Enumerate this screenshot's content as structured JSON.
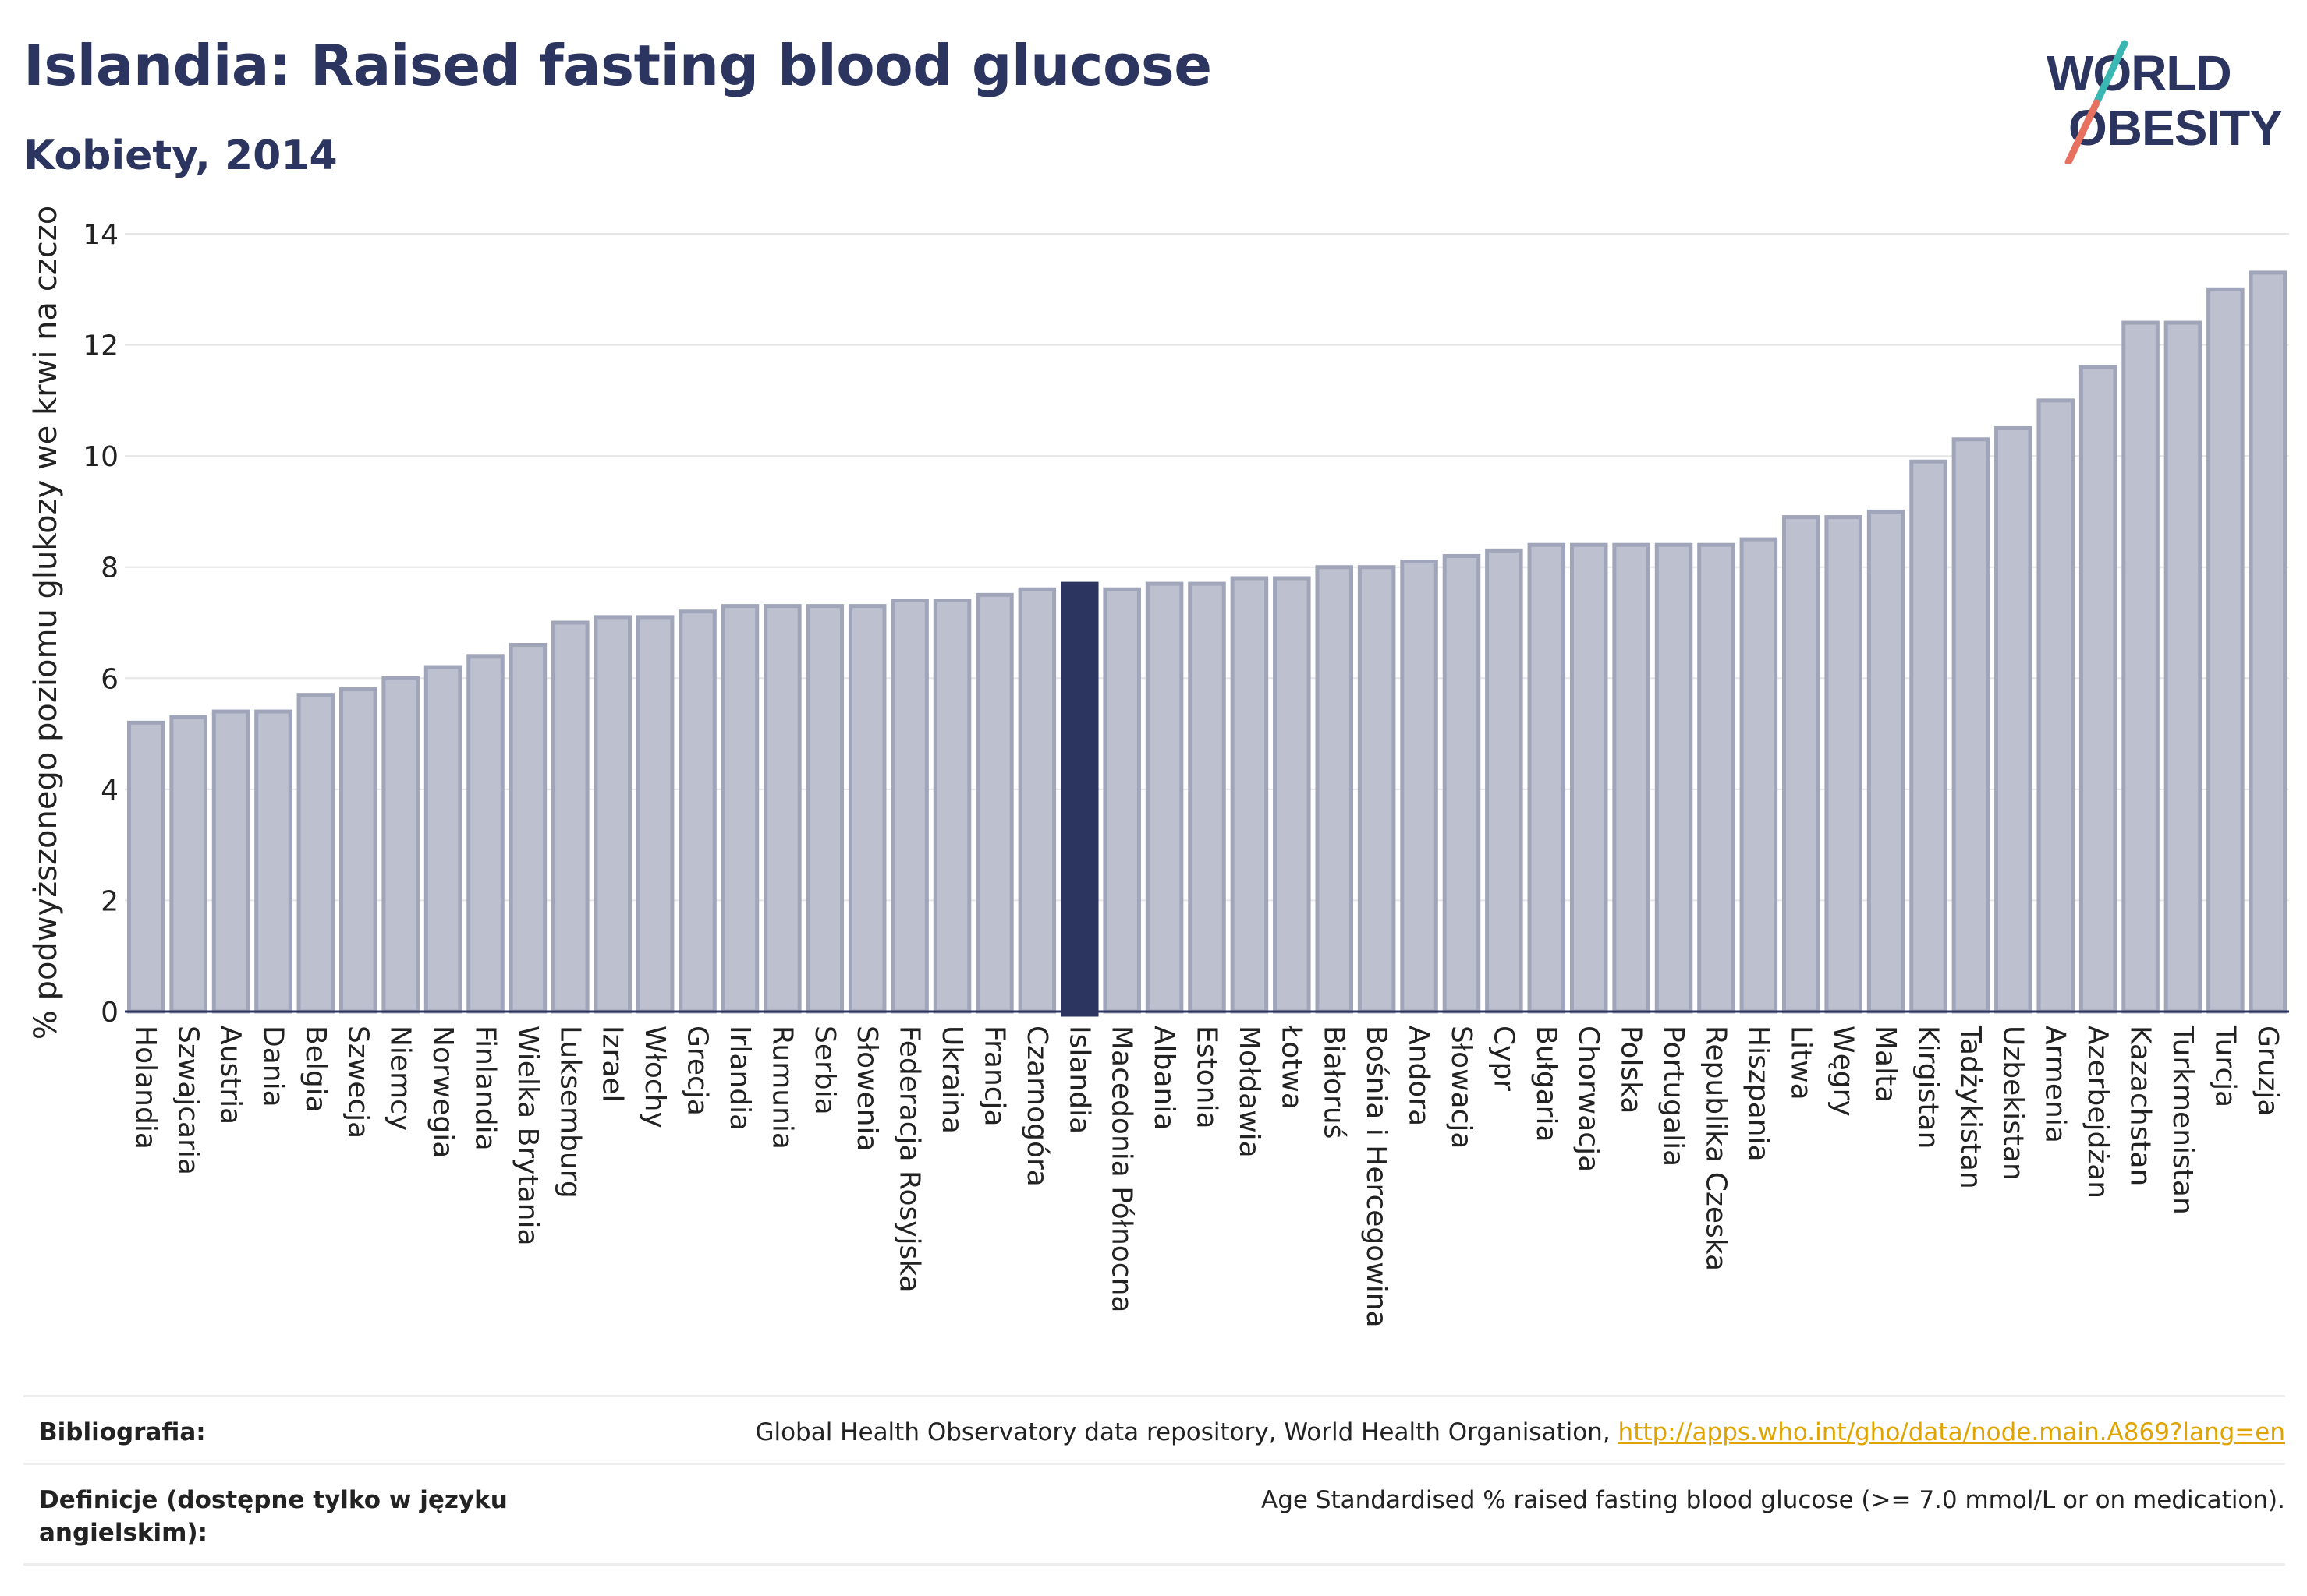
{
  "header": {
    "title": "Islandia: Raised fasting blood glucose",
    "subtitle": "Kobiety, 2014"
  },
  "logo": {
    "line1": "WORLD",
    "line2": "OBESITY",
    "colors": {
      "text": "#2b3560",
      "slash_top": "#3ab7b2",
      "slash_bottom": "#e8705e"
    }
  },
  "chart_data": {
    "type": "bar",
    "title": "Islandia: Raised fasting blood glucose",
    "subtitle": "Kobiety, 2014",
    "ylabel": "% podwyższonego poziomu glukozy we krwi na czczo",
    "xlabel": "",
    "ylim": [
      0,
      14
    ],
    "yticks": [
      0,
      2,
      4,
      6,
      8,
      10,
      12,
      14
    ],
    "grid": true,
    "highlight": "Islandia",
    "colors": {
      "bar": "#bcc0cf",
      "bar_border": "#a0a5ba",
      "highlight": "#2b3560",
      "grid": "#e6e6e6"
    },
    "categories": [
      "Holandia",
      "Szwajcaria",
      "Austria",
      "Dania",
      "Belgia",
      "Szwecja",
      "Niemcy",
      "Norwegia",
      "Finlandia",
      "Wielka Brytania",
      "Luksemburg",
      "Izrael",
      "Włochy",
      "Grecja",
      "Irlandia",
      "Rumunia",
      "Serbia",
      "Słowenia",
      "Federacja Rosyjska",
      "Ukraina",
      "Francja",
      "Czarnogóra",
      "Islandia",
      "Macedonia Północna",
      "Albania",
      "Estonia",
      "Mołdawia",
      "Łotwa",
      "Białoruś",
      "Bośnia i Hercegowina",
      "Andora",
      "Słowacja",
      "Cypr",
      "Bułgaria",
      "Chorwacja",
      "Polska",
      "Portugalia",
      "Republika Czeska",
      "Hiszpania",
      "Litwa",
      "Węgry",
      "Malta",
      "Kirgistan",
      "Tadżykistan",
      "Uzbekistan",
      "Armenia",
      "Azerbejdżan",
      "Kazachstan",
      "Turkmenistan",
      "Turcja",
      "Gruzja"
    ],
    "values": [
      5.2,
      5.3,
      5.4,
      5.4,
      5.7,
      5.8,
      6.0,
      6.2,
      6.4,
      6.6,
      7.0,
      7.1,
      7.1,
      7.2,
      7.3,
      7.3,
      7.3,
      7.3,
      7.4,
      7.4,
      7.5,
      7.6,
      7.7,
      7.6,
      7.7,
      7.7,
      7.8,
      7.8,
      8.0,
      8.0,
      8.1,
      8.2,
      8.3,
      8.4,
      8.4,
      8.4,
      8.4,
      8.4,
      8.5,
      8.9,
      8.9,
      9.0,
      9.9,
      10.3,
      10.5,
      11.0,
      11.6,
      12.4,
      12.4,
      13.0,
      13.3
    ]
  },
  "footer": {
    "bibliography_label": "Bibliografia:",
    "bibliography_text": "Global Health Observatory data repository, World Health Organisation, ",
    "bibliography_link": "http://apps.who.int/gho/data/node.main.A869?lang=en",
    "definitions_label": "Definicje (dostępne tylko w języku angielskim):",
    "definitions_text": "Age Standardised % raised fasting blood glucose (>= 7.0 mmol/L or on medication)."
  }
}
